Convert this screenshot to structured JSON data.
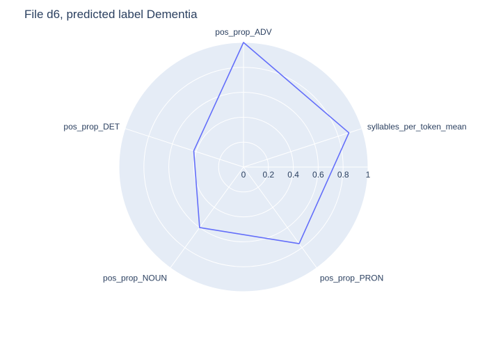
{
  "chart_data": {
    "type": "radar",
    "title": "File d6, predicted label Dementia",
    "axes": [
      "pos_prop_ADV",
      "syllables_per_token_mean",
      "pos_prop_PRON",
      "pos_prop_NOUN",
      "pos_prop_DET"
    ],
    "series": [
      {
        "values": [
          1.0,
          0.89,
          0.76,
          0.6,
          0.42
        ]
      }
    ],
    "radial_range": [
      0,
      1
    ],
    "radial_ticks": [
      "0",
      "0.2",
      "0.4",
      "0.6",
      "0.8",
      "1"
    ],
    "grid": true,
    "colors": {
      "background": "#e5ecf6",
      "grid": "#ffffff",
      "line": "#636efa",
      "text": "#2a3f5f"
    }
  }
}
